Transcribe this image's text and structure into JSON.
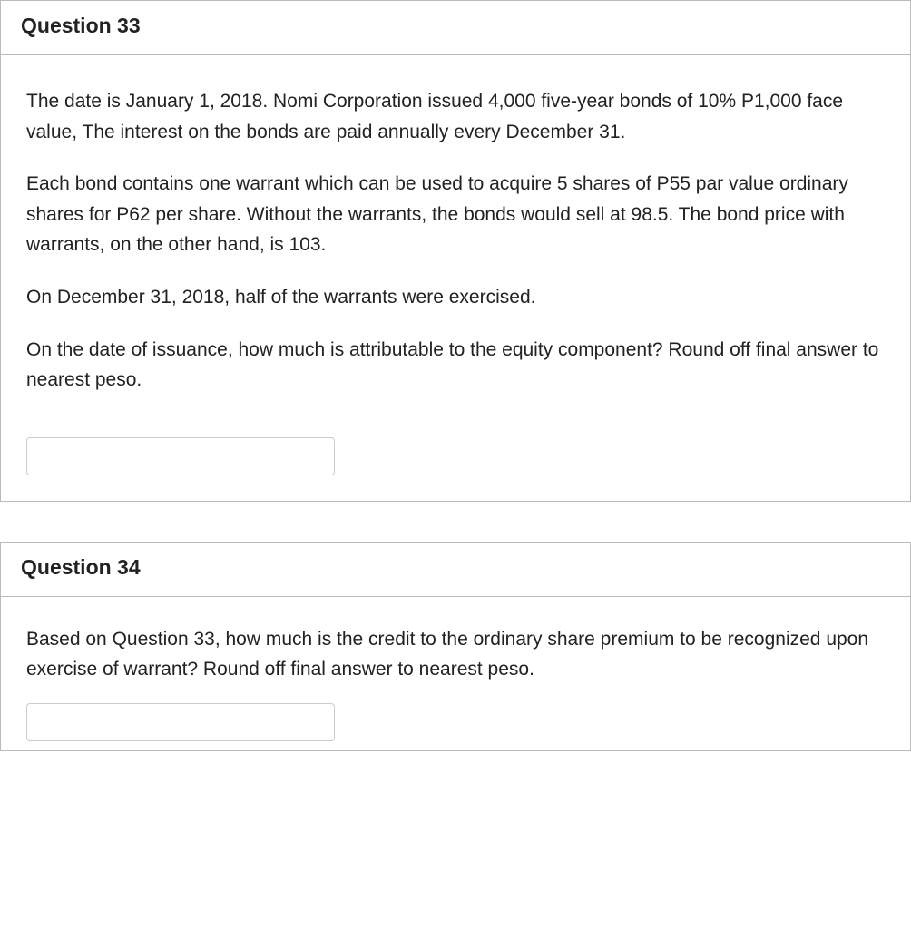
{
  "q33": {
    "title": "Question 33",
    "p1": "The date is January 1, 2018. Nomi Corporation issued 4,000 five-year bonds of 10% P1,000 face value, The interest on the bonds are paid annually every December 31.",
    "p2": "Each bond contains one warrant which can be used to acquire 5 shares of P55 par value ordinary shares for P62 per share. Without the warrants, the bonds would sell at 98.5. The bond price with warrants, on the other hand, is 103.",
    "p3": "On December 31, 2018, half of the warrants were exercised.",
    "p4": "On the date of issuance, how much is attributable to the equity component? Round off final answer to nearest peso.",
    "answer": ""
  },
  "q34": {
    "title": "Question 34",
    "p1": "Based on Question 33, how much is the credit to the ordinary share premium to be recognized upon exercise of warrant? Round off final answer to nearest peso.",
    "answer": ""
  },
  "styles": {
    "border_color": "#bbbbbb",
    "text_color": "#222222",
    "input_border": "#cccccc",
    "title_fontsize": 23,
    "body_fontsize": 21
  }
}
